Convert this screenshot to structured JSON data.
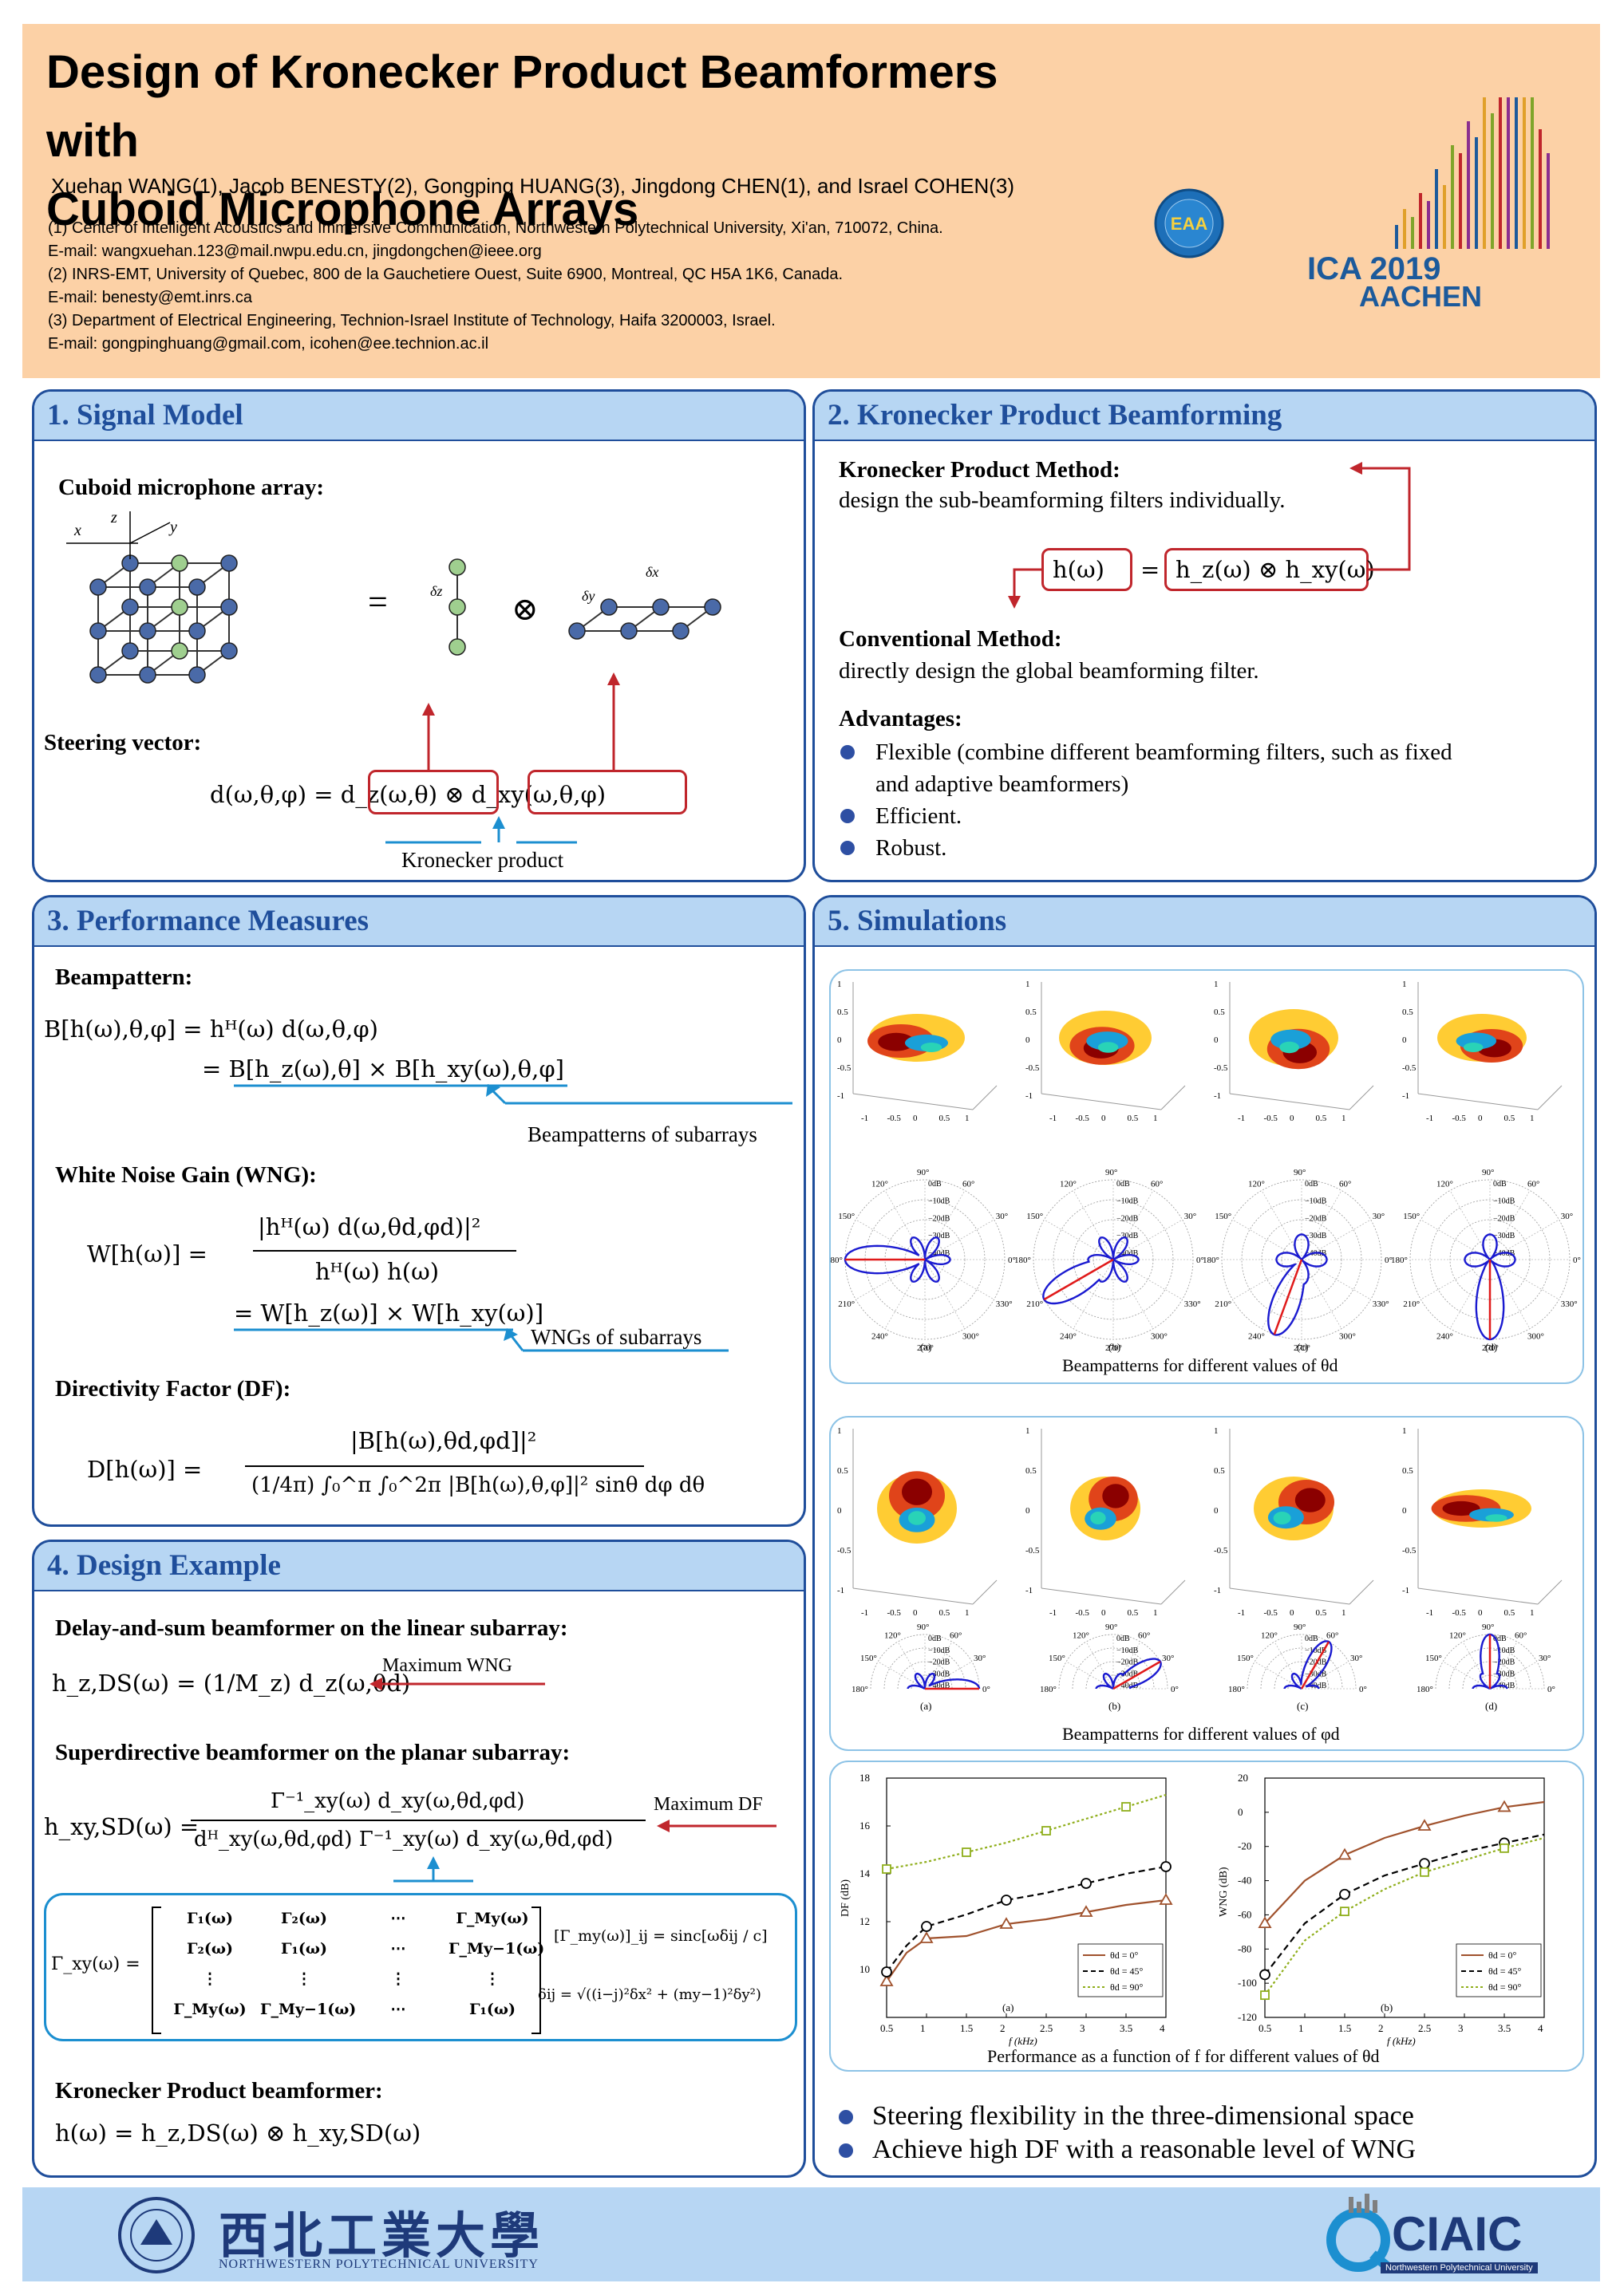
{
  "header": {
    "title_line1": "Design of Kronecker Product Beamformers with",
    "title_line2": "Cuboid Microphone Arrays",
    "authors": "Xuehan WANG(1), Jacob BENESTY(2), Gongping HUANG(3), Jingdong CHEN(1), and Israel COHEN(3)",
    "affiliations": [
      "(1) Center of Intelligent Acoustics and Immersive Communication, Northwestern Polytechnical University, Xi'an, 710072, China.",
      "E-mail: wangxuehan.123@mail.nwpu.edu.cn,  jingdongchen@ieee.org",
      "(2) INRS-EMT, University of Quebec, 800 de la Gauchetiere Ouest, Suite 6900, Montreal, QC H5A 1K6, Canada.",
      "E-mail: benesty@emt.inrs.ca",
      "(3) Department of Electrical Engineering,  Technion-Israel Institute of Technology, Haifa 3200003, Israel.",
      "E-mail: gongpinghuang@gmail.com,  icohen@ee.technion.ac.il"
    ],
    "eaa_logo_text": "EAA",
    "ica_line1": "ICA 2019",
    "ica_line2": "AACHEN"
  },
  "sec1": {
    "heading": "1. Signal Model",
    "cuboid_label": "Cuboid microphone array:",
    "steering_label": "Steering vector:",
    "steering_eq": "d(ω,θ,φ) = d_z(ω,θ) ⊗ d_xy(ω,θ,φ)",
    "kron_note": "Kronecker product",
    "axis_x": "x",
    "axis_y": "y",
    "axis_z": "z",
    "delta_z": "δz",
    "delta_y": "δy",
    "delta_x": "δx"
  },
  "sec2": {
    "heading": "2. Kronecker Product Beamforming",
    "kp_method": "Kronecker Product  Method:",
    "kp_desc": "design the sub-beamforming filters individually.",
    "kp_eq_left": "h(ω)",
    "kp_eq_right": "h_z(ω) ⊗ h_xy(ω)",
    "conv_method": "Conventional Method:",
    "conv_desc": "directly design the global beamforming filter.",
    "adv_label": "Advantages:",
    "advantages": [
      "Flexible (combine different beamforming filters,  such as fixed",
      "and adaptive beamformers)",
      "Efficient.",
      "Robust."
    ]
  },
  "sec3": {
    "heading": "3. Performance Measures",
    "beampattern_label": "Beampattern:",
    "bp_eq1": "B[h(ω),θ,φ] = hᴴ(ω) d(ω,θ,φ)",
    "bp_eq2": "= B[h_z(ω),θ] × B[h_xy(ω),θ,φ]",
    "bp_note": "Beampatterns of subarrays",
    "wng_label": "White Noise Gain (WNG):",
    "wng_num": "|hᴴ(ω) d(ω,θd,φd)|²",
    "wng_den": "hᴴ(ω) h(ω)",
    "wng_lhs": "W[h(ω)] =",
    "wng_eq2": "= W[h_z(ω)] × W[h_xy(ω)]",
    "wng_note": "WNGs of subarrays",
    "df_label": "Directivity Factor (DF):",
    "df_lhs": "D[h(ω)] =",
    "df_num": "|B[h(ω),θd,φd]|²",
    "df_den": "(1/4π) ∫₀^π ∫₀^2π |B[h(ω),θ,φ]|² sinθ dφ dθ"
  },
  "sec4": {
    "heading": "4. Design Example",
    "ds_label": "Delay-and-sum beamformer on the linear subarray:",
    "ds_eq": "h_z,DS(ω) = (1/M_z) d_z(ω,θd)",
    "ds_note": "Maximum WNG",
    "sd_label": "Superdirective beamformer on the planar subarray:",
    "sd_lhs": "h_xy,SD(ω) =",
    "sd_num": "Γ⁻¹_xy(ω) d_xy(ω,θd,φd)",
    "sd_den": "dᴴ_xy(ω,θd,φd) Γ⁻¹_xy(ω) d_xy(ω,θd,φd)",
    "sd_note": "Maximum DF",
    "gamma_lhs": "Γ_xy(ω) =",
    "gamma_rows": [
      [
        "Γ₁(ω)",
        "Γ₂(ω)",
        "⋯",
        "Γ_My(ω)"
      ],
      [
        "Γ₂(ω)",
        "Γ₁(ω)",
        "⋯",
        "Γ_My−1(ω)"
      ],
      [
        "⋮",
        "⋮",
        "⋮",
        "⋮"
      ],
      [
        "Γ_My(ω)",
        "Γ_My−1(ω)",
        "⋯",
        "Γ₁(ω)"
      ]
    ],
    "gamma_ij": "[Γ_my(ω)]_ij = sinc[ωδij / c]",
    "delta_ij": "δij = √((i−j)²δx² + (my−1)²δy²)",
    "kp_label": "Kronecker Product beamformer:",
    "kp_eq": "h(ω) = h_z,DS(ω) ⊗ h_xy,SD(ω)"
  },
  "sec5": {
    "heading": "5. Simulations",
    "sub_labels": [
      "(a)",
      "(b)",
      "(c)",
      "(d)"
    ],
    "cap1": "Beampatterns  for different values of θd",
    "cap2": "Beampatterns  for different values of φd",
    "cap3": "Performance as a function of f for different values of θd",
    "mesh_ticks_z": [
      "1",
      "0.5",
      "0",
      "-0.5",
      "-1"
    ],
    "mesh_ticks_x": [
      "-1",
      "-0.5",
      "0",
      "0.5",
      "1"
    ],
    "polar_angles": [
      "90°",
      "60°",
      "30°",
      "0°",
      "330°",
      "300°",
      "270°",
      "240°",
      "210°",
      "180°",
      "150°",
      "120°"
    ],
    "polar_db": [
      "0dB",
      "−10dB",
      "−20dB",
      "−30dB",
      "−40dB"
    ],
    "conclusions": [
      "Steering flexibility in the three-dimensional space",
      "Achieve high DF with a reasonable level of WNG"
    ]
  },
  "chart_data": [
    {
      "type": "line",
      "title": "(a)",
      "xlabel": "f (kHz)",
      "ylabel": "DF (dB)",
      "xlim": [
        0.5,
        4
      ],
      "ylim": [
        8,
        18
      ],
      "xticks": [
        0.5,
        1,
        1.5,
        2,
        2.5,
        3,
        3.5,
        4
      ],
      "yticks": [
        10,
        12,
        14,
        16,
        18
      ],
      "legend_position": "bottom-right",
      "series": [
        {
          "name": "θd = 0°",
          "color": "#a0522d",
          "marker": "triangle",
          "x": [
            0.5,
            0.75,
            1.0,
            1.5,
            2.0,
            2.5,
            3.0,
            3.5,
            4.0
          ],
          "y": [
            9.5,
            10.7,
            11.3,
            11.4,
            11.9,
            12.1,
            12.4,
            12.7,
            12.9
          ]
        },
        {
          "name": "θd = 45°",
          "color": "#000000",
          "marker": "circle",
          "x": [
            0.5,
            0.75,
            1.0,
            1.5,
            2.0,
            2.5,
            3.0,
            3.5,
            4.0
          ],
          "y": [
            9.9,
            11.0,
            11.8,
            12.3,
            12.9,
            13.2,
            13.6,
            14.0,
            14.3
          ]
        },
        {
          "name": "θd = 90°",
          "color": "#8fae1b",
          "marker": "square",
          "x": [
            0.5,
            1.0,
            1.5,
            2.0,
            2.5,
            3.0,
            3.5,
            4.0
          ],
          "y": [
            14.2,
            14.5,
            14.9,
            15.3,
            15.8,
            16.3,
            16.8,
            17.3
          ]
        }
      ]
    },
    {
      "type": "line",
      "title": "(b)",
      "xlabel": "f (kHz)",
      "ylabel": "WNG (dB)",
      "xlim": [
        0.5,
        4
      ],
      "ylim": [
        -120,
        20
      ],
      "xticks": [
        0.5,
        1,
        1.5,
        2,
        2.5,
        3,
        3.5,
        4
      ],
      "yticks": [
        -120,
        -100,
        -80,
        -60,
        -40,
        -20,
        0,
        20
      ],
      "legend_position": "bottom-right",
      "series": [
        {
          "name": "θd = 0°",
          "color": "#a0522d",
          "marker": "triangle",
          "x": [
            0.5,
            1.0,
            1.5,
            2.0,
            2.5,
            3.0,
            3.5,
            4.0
          ],
          "y": [
            -65,
            -40,
            -25,
            -15,
            -8,
            -2,
            3,
            6
          ]
        },
        {
          "name": "θd = 45°",
          "color": "#000000",
          "marker": "circle",
          "x": [
            0.5,
            1.0,
            1.5,
            2.0,
            2.5,
            3.0,
            3.5,
            4.0
          ],
          "y": [
            -95,
            -65,
            -48,
            -37,
            -30,
            -23,
            -18,
            -13
          ]
        },
        {
          "name": "θd = 90°",
          "color": "#8fae1b",
          "marker": "square",
          "x": [
            0.5,
            1.0,
            1.5,
            2.0,
            2.5,
            3.0,
            3.5,
            4.0
          ],
          "y": [
            -107,
            -75,
            -58,
            -45,
            -35,
            -28,
            -21,
            -15
          ]
        }
      ]
    }
  ],
  "footer": {
    "university_cn": "西北工業大學",
    "university_en": "NORTHWESTERN  POLYTECHNICAL  UNIVERSITY",
    "ciaic": "CIAIC",
    "ciaic_sub": "Northwestern Polytechnical University"
  }
}
